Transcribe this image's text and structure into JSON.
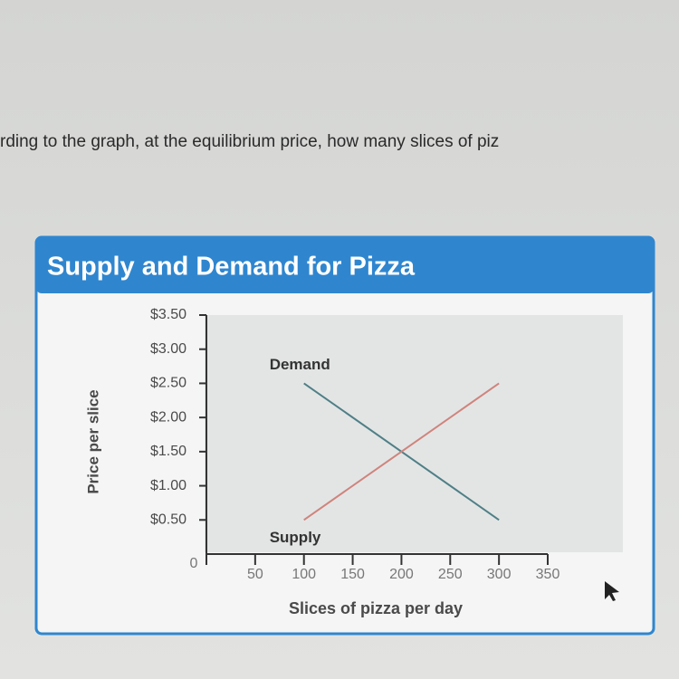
{
  "question": "rding to the graph, at the equilibrium price, how many slices of piz",
  "chart_data": {
    "type": "line",
    "title": "Supply and Demand for Pizza",
    "x_label": "Slices of pizza per day",
    "y_label": "Price per slice",
    "x": [
      100,
      300
    ],
    "series": [
      {
        "name": "Demand",
        "color": "#4f7f86",
        "values": [
          2.5,
          0.5
        ]
      },
      {
        "name": "Supply",
        "color": "#cf847c",
        "values": [
          0.5,
          2.5
        ]
      }
    ],
    "xlim": [
      0,
      350
    ],
    "xticks": [
      0,
      50,
      100,
      150,
      200,
      250,
      300,
      350
    ],
    "ylim": [
      0,
      3.5
    ],
    "yticks": [
      {
        "value": 0.5,
        "label": "$0.50"
      },
      {
        "value": 1,
        "label": "$1.00"
      },
      {
        "value": 1.5,
        "label": "$1.50"
      },
      {
        "value": 2,
        "label": "$2.00"
      },
      {
        "value": 2.5,
        "label": "$2.50"
      },
      {
        "value": 3,
        "label": "$3.00"
      },
      {
        "value": 3.5,
        "label": "$3.50"
      }
    ]
  }
}
